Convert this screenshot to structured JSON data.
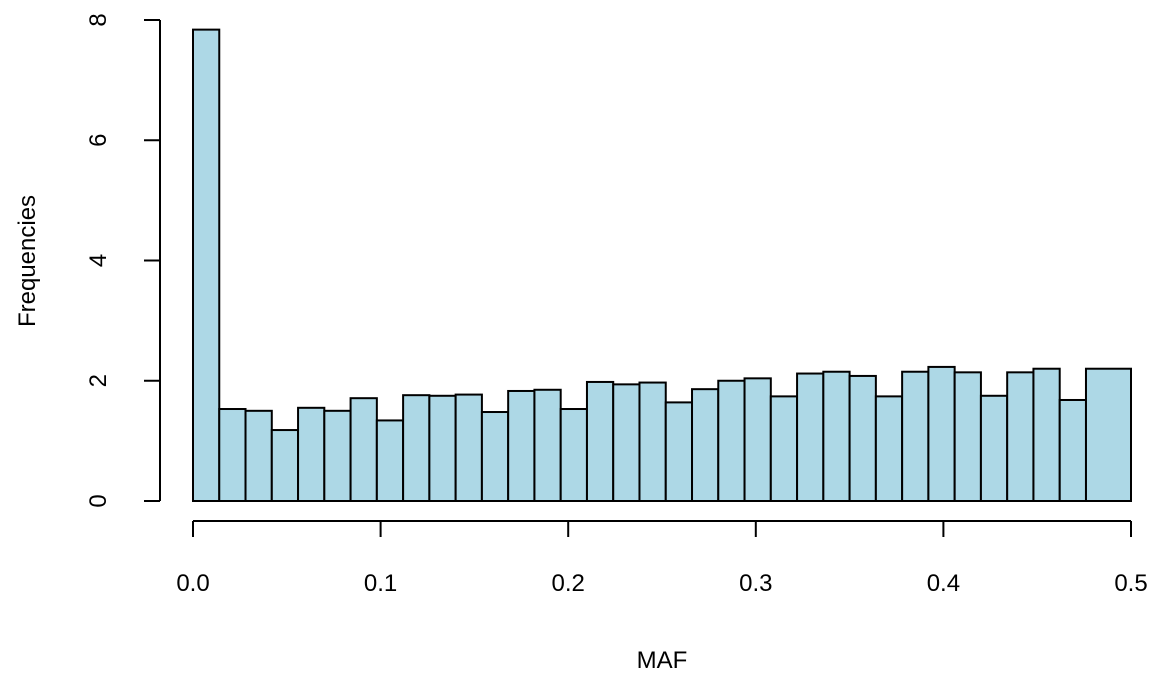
{
  "chart_data": {
    "type": "bar",
    "title": "",
    "xlabel": "MAF",
    "ylabel": "Frequencies",
    "xlim": [
      0,
      0.5
    ],
    "ylim": [
      0,
      8
    ],
    "x_ticks": [
      0,
      0.1,
      0.2,
      0.3,
      0.4,
      0.5
    ],
    "x_tick_labels": [
      "0.0",
      "0.1",
      "0.2",
      "0.3",
      "0.4",
      "0.5"
    ],
    "y_ticks": [
      0,
      2,
      4,
      6,
      8
    ],
    "y_tick_labels": [
      "0",
      "2",
      "4",
      "6",
      "8"
    ],
    "grid": false,
    "bar_color": "#add8e6",
    "edge_color": "#000000",
    "bins": [
      {
        "x0": 0.0,
        "x1": 0.014,
        "value": 7.84
      },
      {
        "x0": 0.014,
        "x1": 0.028,
        "value": 1.53
      },
      {
        "x0": 0.028,
        "x1": 0.042,
        "value": 1.5
      },
      {
        "x0": 0.042,
        "x1": 0.056,
        "value": 1.18
      },
      {
        "x0": 0.056,
        "x1": 0.07,
        "value": 1.55
      },
      {
        "x0": 0.07,
        "x1": 0.084,
        "value": 1.5
      },
      {
        "x0": 0.084,
        "x1": 0.098,
        "value": 1.71
      },
      {
        "x0": 0.098,
        "x1": 0.112,
        "value": 1.34
      },
      {
        "x0": 0.112,
        "x1": 0.126,
        "value": 1.76
      },
      {
        "x0": 0.126,
        "x1": 0.14,
        "value": 1.75
      },
      {
        "x0": 0.14,
        "x1": 0.154,
        "value": 1.77
      },
      {
        "x0": 0.154,
        "x1": 0.168,
        "value": 1.48
      },
      {
        "x0": 0.168,
        "x1": 0.182,
        "value": 1.83
      },
      {
        "x0": 0.182,
        "x1": 0.196,
        "value": 1.85
      },
      {
        "x0": 0.196,
        "x1": 0.21,
        "value": 1.53
      },
      {
        "x0": 0.21,
        "x1": 0.224,
        "value": 1.98
      },
      {
        "x0": 0.224,
        "x1": 0.238,
        "value": 1.94
      },
      {
        "x0": 0.238,
        "x1": 0.252,
        "value": 1.97
      },
      {
        "x0": 0.252,
        "x1": 0.266,
        "value": 1.64
      },
      {
        "x0": 0.266,
        "x1": 0.28,
        "value": 1.86
      },
      {
        "x0": 0.28,
        "x1": 0.294,
        "value": 2.0
      },
      {
        "x0": 0.294,
        "x1": 0.308,
        "value": 2.04
      },
      {
        "x0": 0.308,
        "x1": 0.322,
        "value": 1.74
      },
      {
        "x0": 0.322,
        "x1": 0.336,
        "value": 2.12
      },
      {
        "x0": 0.336,
        "x1": 0.35,
        "value": 2.15
      },
      {
        "x0": 0.35,
        "x1": 0.364,
        "value": 2.08
      },
      {
        "x0": 0.364,
        "x1": 0.378,
        "value": 1.74
      },
      {
        "x0": 0.378,
        "x1": 0.392,
        "value": 2.15
      },
      {
        "x0": 0.392,
        "x1": 0.406,
        "value": 2.23
      },
      {
        "x0": 0.406,
        "x1": 0.42,
        "value": 2.14
      },
      {
        "x0": 0.42,
        "x1": 0.434,
        "value": 1.75
      },
      {
        "x0": 0.434,
        "x1": 0.448,
        "value": 2.14
      },
      {
        "x0": 0.448,
        "x1": 0.462,
        "value": 2.2
      },
      {
        "x0": 0.462,
        "x1": 0.476,
        "value": 1.68
      },
      {
        "x0": 0.476,
        "x1": 0.5,
        "value": 2.2
      }
    ]
  }
}
